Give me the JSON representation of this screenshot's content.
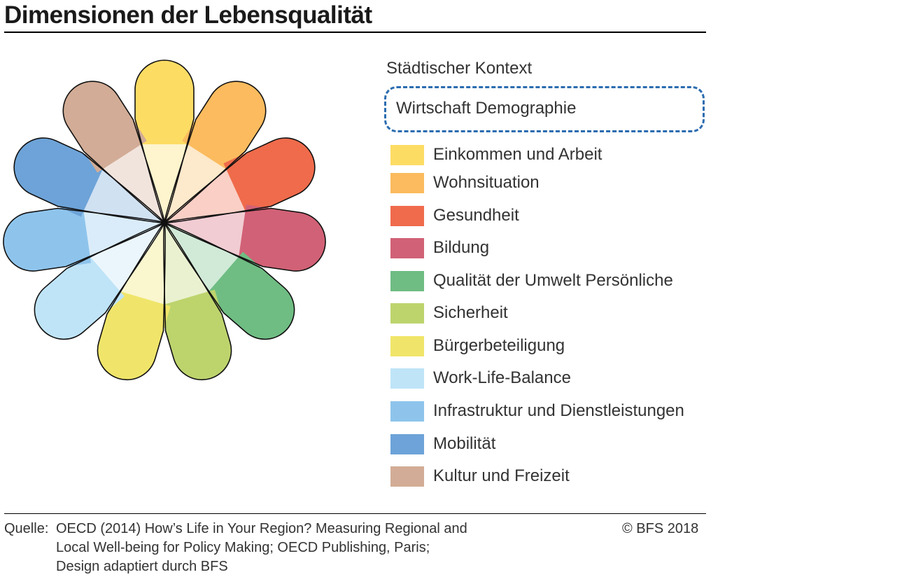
{
  "title": "Dimensionen der Lebensqualität",
  "context": {
    "label": "Städtischer Kontext",
    "box_text": "Wirtschaft Demographie",
    "box_color": "#2b6cb0"
  },
  "legend": [
    {
      "label": "Einkommen und Arbeit",
      "color": "#fddc64"
    },
    {
      "label": "Wohnsituation",
      "color": "#fbbb5e"
    },
    {
      "label": "Gesundheit",
      "color": "#ef6b4b"
    },
    {
      "label": "Bildung",
      "color": "#d16176"
    },
    {
      "label": "Qualität der Umwelt Persönliche",
      "color": "#6fbd83"
    },
    {
      "label": "Sicherheit",
      "color": "#bdd46d"
    },
    {
      "label": "Bürgerbeteiligung",
      "color": "#f0e56a"
    },
    {
      "label": "Work-Life-Balance",
      "color": "#bfe4f8"
    },
    {
      "label": "Infrastruktur und Dienstleistungen",
      "color": "#8ec4ec"
    },
    {
      "label": "Mobilität",
      "color": "#6da3d8"
    },
    {
      "label": "Kultur und Freizeit",
      "color": "#d2ac96"
    }
  ],
  "source": {
    "label": "Quelle:",
    "lines": [
      "OECD (2014) How’s Life in Your Region? Measuring Regional and",
      "Local Well-being for Policy Making; OECD Publishing, Paris;",
      "Design adaptiert durch BFS"
    ]
  },
  "copyright": "© BFS 2018"
}
